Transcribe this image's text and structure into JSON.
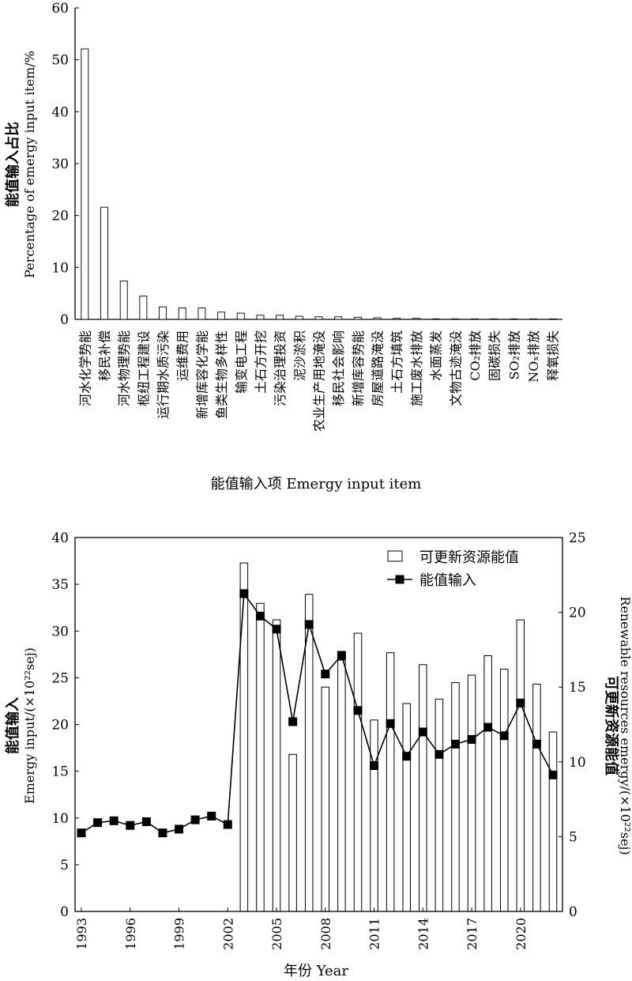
{
  "chart_data": [
    {
      "type": "bar",
      "xlabel": "能值输入项 Emergy input item",
      "ylabel_cn": "能值输入占比",
      "ylabel_en": "Percentage of emergy input item/%",
      "ylim": [
        0,
        60
      ],
      "yticks": [
        0,
        10,
        20,
        30,
        40,
        50,
        60
      ],
      "grid": false,
      "categories": [
        "河水化学势能",
        "移民补偿",
        "河水物理势能",
        "枢纽工程建设",
        "运行期水质污染",
        "运维费用",
        "新增库容化学能",
        "鱼类生物多样性",
        "输变电工程",
        "土石方开挖",
        "污染治理投资",
        "泥沙淤积",
        "农业生产用地淹没",
        "移民社会影响",
        "新增库容势能",
        "房屋道路淹没",
        "土石方填筑",
        "施工废水排放",
        "水面蒸发",
        "文物古迹淹没",
        "CO₂排放",
        "固碳损失",
        "SO₂排放",
        "NOₓ排放",
        "释氧损失"
      ],
      "values": [
        52.1,
        21.6,
        7.4,
        4.5,
        2.4,
        2.2,
        2.2,
        1.4,
        1.2,
        0.8,
        0.8,
        0.6,
        0.5,
        0.5,
        0.4,
        0.3,
        0.2,
        0.2,
        0.1,
        0.1,
        0.05,
        0.05,
        0.05,
        0.05,
        0.05
      ]
    },
    {
      "type": "bar+line",
      "xlabel": "年份 Year",
      "ylabel_left_cn": "能值输入",
      "ylabel_left_en": "Emergy input/(×10²²sej)",
      "ylabel_right_cn": "可更新资源能值",
      "ylabel_right_en": "Renewable resources emergy/(×10²²sej)",
      "ylim_left": [
        0,
        40
      ],
      "yticks_left": [
        0,
        5,
        10,
        15,
        20,
        25,
        30,
        35,
        40
      ],
      "ylim_right": [
        0,
        25
      ],
      "yticks_right": [
        0,
        5,
        10,
        15,
        20,
        25
      ],
      "xticks": [
        1993,
        1996,
        1999,
        2002,
        2005,
        2008,
        2011,
        2014,
        2017,
        2020
      ],
      "legend_position": "top-right",
      "grid": false,
      "years": [
        1993,
        1994,
        1995,
        1996,
        1997,
        1998,
        1999,
        2000,
        2001,
        2002,
        2003,
        2004,
        2005,
        2006,
        2007,
        2008,
        2009,
        2010,
        2011,
        2012,
        2013,
        2014,
        2015,
        2016,
        2017,
        2018,
        2019,
        2020,
        2021,
        2022
      ],
      "series": [
        {
          "name": "可更新资源能值",
          "axis": "right",
          "style": "bar",
          "values": [
            null,
            null,
            null,
            null,
            null,
            null,
            null,
            null,
            null,
            null,
            23.3,
            20.6,
            19.5,
            10.5,
            21.2,
            15.0,
            16.8,
            18.6,
            12.8,
            17.3,
            13.9,
            16.5,
            14.2,
            15.3,
            15.8,
            17.1,
            16.2,
            19.5,
            15.2,
            12.0
          ]
        },
        {
          "name": "能值输入",
          "axis": "left",
          "style": "line-square",
          "values": [
            8.4,
            9.5,
            9.7,
            9.2,
            9.6,
            8.4,
            8.8,
            9.8,
            10.2,
            9.3,
            34.0,
            31.6,
            30.2,
            20.3,
            30.7,
            25.4,
            27.4,
            21.5,
            15.6,
            20.1,
            16.6,
            19.2,
            16.8,
            17.9,
            18.4,
            19.7,
            18.8,
            22.3,
            17.9,
            14.6
          ]
        }
      ]
    }
  ]
}
